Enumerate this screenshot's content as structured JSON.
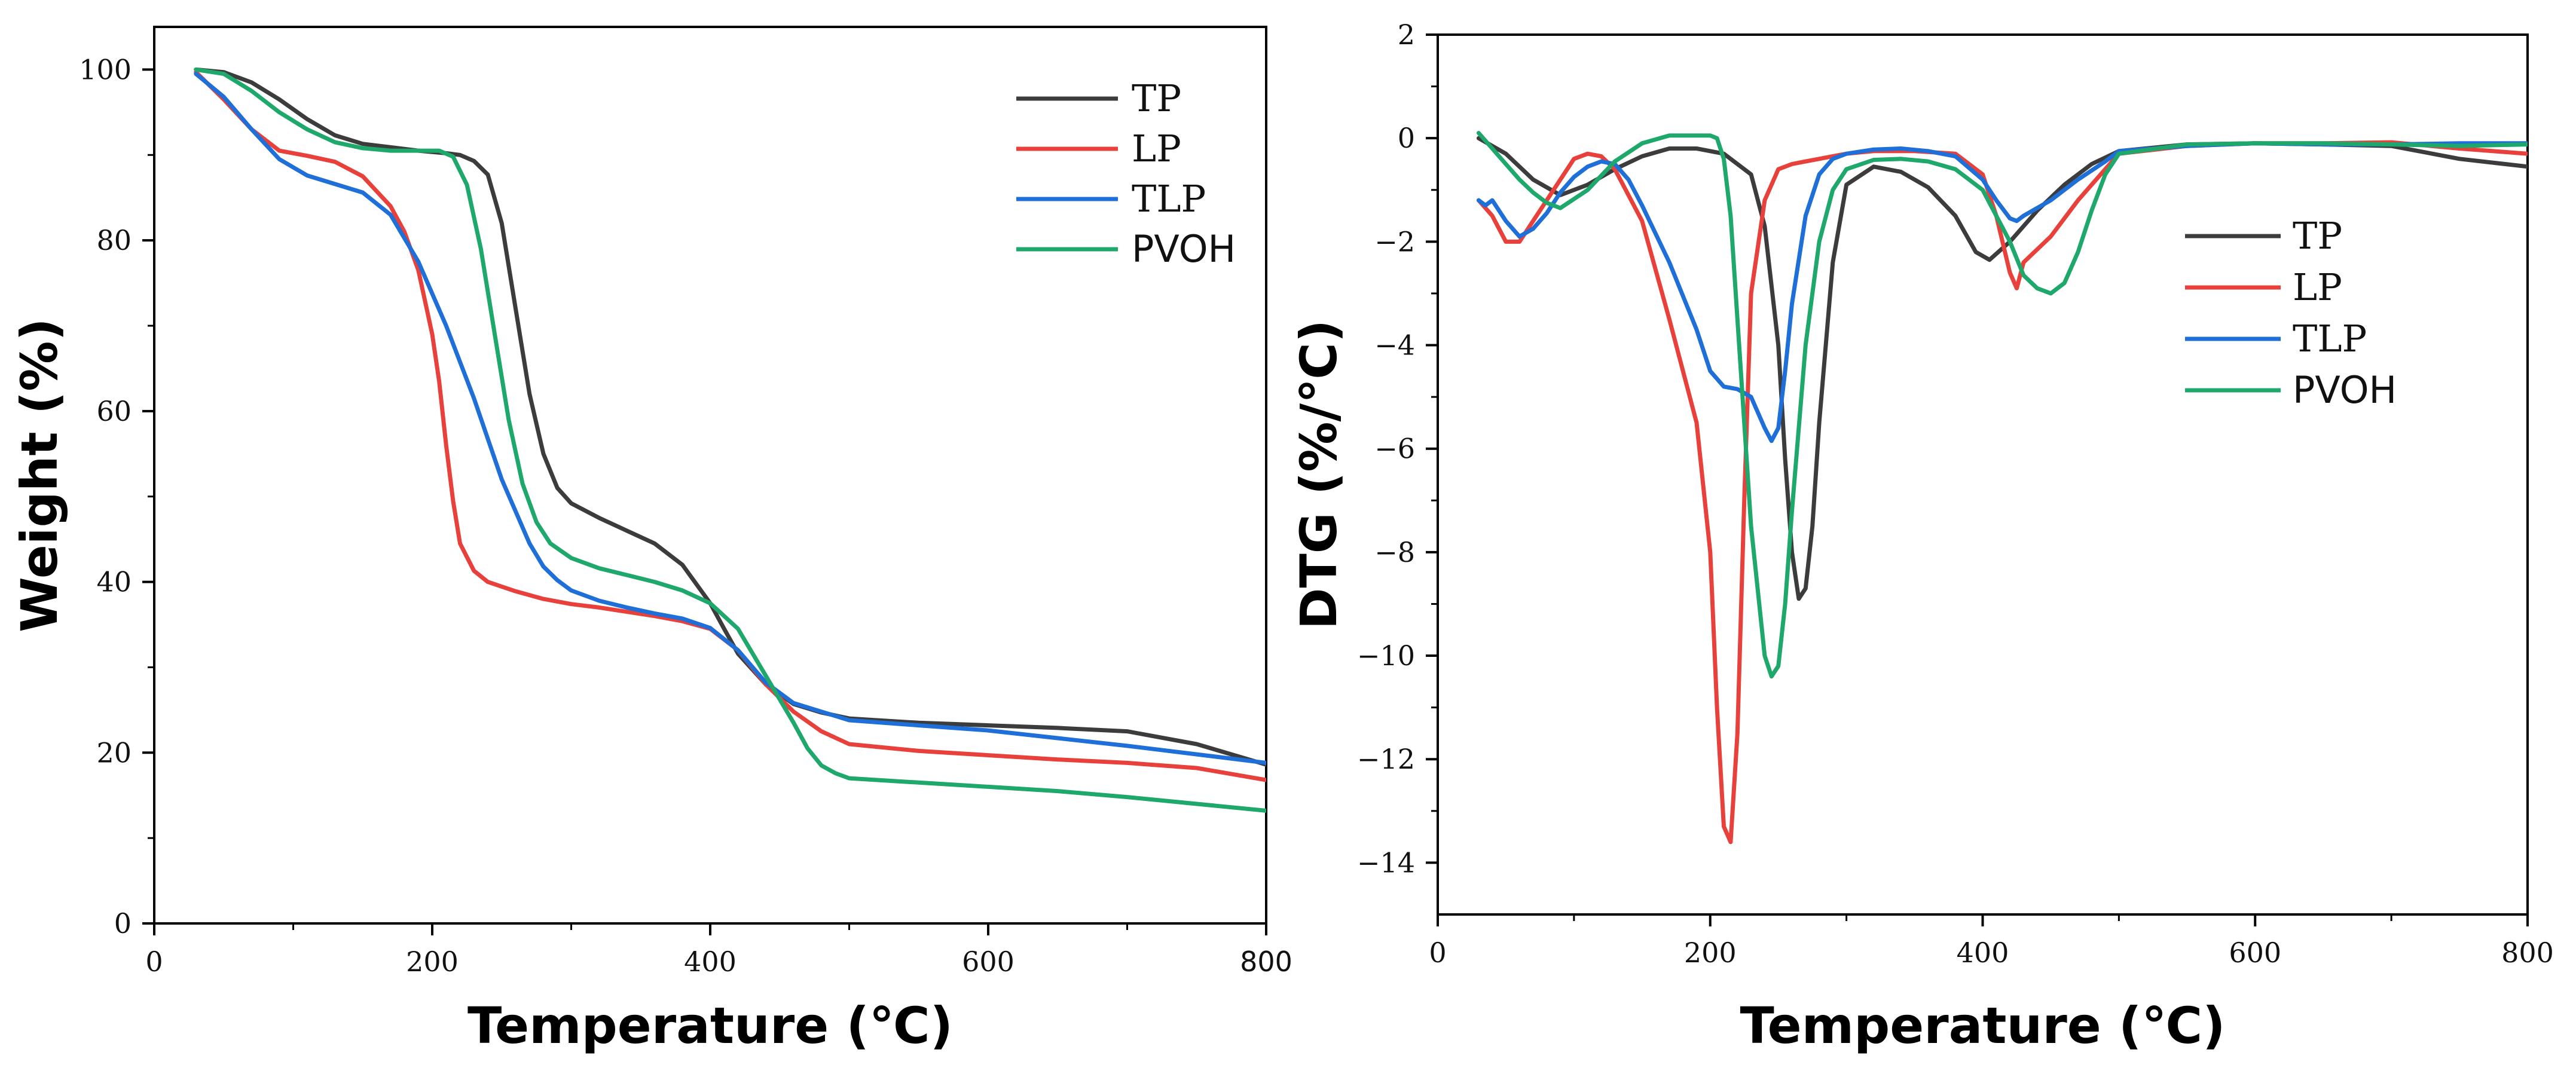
{
  "chart_data": [
    {
      "type": "line",
      "title": "",
      "xlabel": "Temperature (℃)",
      "ylabel": "Weight (%)",
      "xlim": [
        0,
        800
      ],
      "ylim": [
        0,
        105
      ],
      "xticks": [
        0,
        200,
        400,
        600,
        800
      ],
      "xtick_labels": [
        "0",
        "200",
        "400",
        "600",
        "800"
      ],
      "yticks": [
        0,
        20,
        40,
        60,
        80,
        100
      ],
      "ytick_labels": [
        "0",
        "20",
        "40",
        "60",
        "80",
        "100"
      ],
      "grid": false,
      "legend_position": "top-right",
      "series": [
        {
          "name": "TP",
          "color": "#3c3c3c",
          "x": [
            30,
            50,
            70,
            90,
            110,
            130,
            150,
            170,
            190,
            210,
            220,
            230,
            240,
            250,
            260,
            270,
            280,
            290,
            300,
            320,
            340,
            360,
            380,
            400,
            410,
            420,
            440,
            460,
            480,
            500,
            550,
            600,
            650,
            700,
            750,
            800
          ],
          "y": [
            100,
            99.7,
            98.5,
            96.5,
            94.2,
            92.3,
            91.3,
            90.9,
            90.5,
            90.2,
            90.0,
            89.3,
            87.7,
            82.0,
            72.0,
            62.0,
            55.0,
            51.0,
            49.2,
            47.5,
            46.0,
            44.5,
            42.0,
            37.5,
            34.5,
            31.6,
            28.0,
            25.7,
            24.7,
            24.0,
            23.5,
            23.2,
            22.9,
            22.5,
            21.0,
            18.6
          ]
        },
        {
          "name": "LP",
          "color": "#e8403a",
          "x": [
            30,
            50,
            70,
            90,
            110,
            130,
            150,
            170,
            180,
            190,
            200,
            205,
            210,
            215,
            220,
            230,
            240,
            260,
            280,
            300,
            320,
            340,
            360,
            380,
            400,
            420,
            440,
            460,
            480,
            500,
            550,
            600,
            650,
            700,
            750,
            800
          ],
          "y": [
            99.7,
            96.5,
            93.0,
            90.5,
            89.9,
            89.2,
            87.5,
            84.0,
            81.0,
            76.5,
            69.0,
            63.5,
            56.0,
            49.5,
            44.5,
            41.3,
            40.0,
            38.9,
            38.0,
            37.4,
            37.0,
            36.5,
            36.0,
            35.4,
            34.5,
            32.0,
            28.0,
            24.8,
            22.5,
            21.0,
            20.2,
            19.7,
            19.2,
            18.8,
            18.2,
            16.8
          ]
        },
        {
          "name": "TLP",
          "color": "#1e6fd8",
          "x": [
            30,
            50,
            70,
            90,
            110,
            130,
            150,
            170,
            190,
            210,
            230,
            250,
            270,
            280,
            290,
            300,
            320,
            340,
            360,
            380,
            400,
            420,
            440,
            460,
            480,
            500,
            550,
            600,
            650,
            700,
            750,
            800
          ],
          "y": [
            99.5,
            96.8,
            93.0,
            89.5,
            87.6,
            86.6,
            85.6,
            83.0,
            77.5,
            70.0,
            61.5,
            52.0,
            44.5,
            41.8,
            40.2,
            39.0,
            37.8,
            37.0,
            36.3,
            35.7,
            34.6,
            32.0,
            28.2,
            25.8,
            24.8,
            23.8,
            23.2,
            22.6,
            21.7,
            20.8,
            19.8,
            18.8
          ]
        },
        {
          "name": "PVOH",
          "color": "#1ea86b",
          "x": [
            30,
            50,
            70,
            90,
            110,
            130,
            150,
            170,
            190,
            205,
            215,
            225,
            235,
            245,
            255,
            265,
            275,
            285,
            300,
            320,
            340,
            360,
            380,
            400,
            420,
            440,
            460,
            470,
            480,
            490,
            500,
            550,
            600,
            650,
            700,
            750,
            800
          ],
          "y": [
            100,
            99.5,
            97.5,
            95.0,
            93.0,
            91.5,
            90.8,
            90.5,
            90.5,
            90.5,
            89.8,
            86.5,
            79.0,
            69.0,
            59.0,
            51.5,
            47.0,
            44.5,
            42.8,
            41.6,
            40.8,
            40.0,
            39.0,
            37.5,
            34.5,
            29.0,
            23.5,
            20.5,
            18.5,
            17.6,
            17.0,
            16.5,
            16.0,
            15.5,
            14.8,
            14.0,
            13.2
          ]
        }
      ]
    },
    {
      "type": "line",
      "title": "",
      "xlabel": "Temperature (℃)",
      "ylabel": "DTG (%/℃)",
      "xlim": [
        0,
        800
      ],
      "ylim": [
        -15,
        2
      ],
      "xticks": [
        0,
        200,
        400,
        600,
        800
      ],
      "xtick_labels": [
        "0",
        "200",
        "400",
        "600",
        "800"
      ],
      "yticks": [
        -14,
        -12,
        -10,
        -8,
        -6,
        -4,
        -2,
        0,
        2
      ],
      "ytick_labels": [
        "−14",
        "−12",
        "−10",
        "−8",
        "−6",
        "−4",
        "−2",
        "0",
        "2"
      ],
      "grid": false,
      "legend_position": "center-right",
      "series": [
        {
          "name": "TP",
          "color": "#3c3c3c",
          "x": [
            30,
            50,
            70,
            90,
            110,
            130,
            150,
            170,
            190,
            210,
            230,
            240,
            250,
            255,
            260,
            265,
            270,
            275,
            280,
            290,
            300,
            320,
            340,
            360,
            380,
            395,
            405,
            420,
            440,
            460,
            480,
            500,
            550,
            600,
            650,
            700,
            750,
            800
          ],
          "y": [
            0,
            -0.3,
            -0.8,
            -1.1,
            -0.9,
            -0.6,
            -0.35,
            -0.2,
            -0.2,
            -0.3,
            -0.7,
            -1.7,
            -4.0,
            -6.2,
            -8.0,
            -8.9,
            -8.7,
            -7.5,
            -5.5,
            -2.4,
            -0.9,
            -0.55,
            -0.65,
            -0.95,
            -1.5,
            -2.2,
            -2.35,
            -2.0,
            -1.4,
            -0.9,
            -0.5,
            -0.25,
            -0.12,
            -0.1,
            -0.12,
            -0.15,
            -0.4,
            -0.55
          ]
        },
        {
          "name": "LP",
          "color": "#e8403a",
          "x": [
            30,
            40,
            50,
            60,
            70,
            80,
            90,
            100,
            110,
            120,
            130,
            150,
            170,
            190,
            200,
            205,
            210,
            215,
            220,
            225,
            230,
            240,
            250,
            260,
            270,
            300,
            320,
            350,
            380,
            400,
            410,
            420,
            425,
            430,
            450,
            470,
            490,
            500,
            550,
            600,
            650,
            700,
            750,
            800
          ],
          "y": [
            -1.2,
            -1.5,
            -2.0,
            -2.0,
            -1.6,
            -1.2,
            -0.8,
            -0.4,
            -0.3,
            -0.35,
            -0.6,
            -1.6,
            -3.5,
            -5.5,
            -8.0,
            -11.0,
            -13.3,
            -13.6,
            -11.5,
            -7.0,
            -3.0,
            -1.2,
            -0.6,
            -0.5,
            -0.45,
            -0.3,
            -0.25,
            -0.25,
            -0.3,
            -0.7,
            -1.5,
            -2.6,
            -2.9,
            -2.4,
            -1.9,
            -1.2,
            -0.6,
            -0.3,
            -0.15,
            -0.1,
            -0.1,
            -0.08,
            -0.2,
            -0.3
          ]
        },
        {
          "name": "TLP",
          "color": "#1e6fd8",
          "x": [
            30,
            35,
            40,
            50,
            60,
            70,
            80,
            90,
            100,
            110,
            120,
            130,
            140,
            150,
            170,
            190,
            200,
            210,
            220,
            230,
            240,
            245,
            250,
            255,
            260,
            270,
            280,
            290,
            300,
            320,
            340,
            360,
            380,
            400,
            410,
            420,
            425,
            430,
            450,
            470,
            490,
            500,
            550,
            600,
            650,
            700,
            750,
            800
          ],
          "y": [
            -1.2,
            -1.3,
            -1.2,
            -1.6,
            -1.9,
            -1.75,
            -1.45,
            -1.05,
            -0.75,
            -0.55,
            -0.45,
            -0.5,
            -0.8,
            -1.3,
            -2.4,
            -3.7,
            -4.5,
            -4.8,
            -4.85,
            -5.0,
            -5.6,
            -5.85,
            -5.6,
            -4.5,
            -3.2,
            -1.5,
            -0.7,
            -0.4,
            -0.3,
            -0.22,
            -0.2,
            -0.25,
            -0.35,
            -0.8,
            -1.2,
            -1.55,
            -1.6,
            -1.5,
            -1.2,
            -0.8,
            -0.45,
            -0.25,
            -0.15,
            -0.1,
            -0.12,
            -0.12,
            -0.1,
            -0.1
          ]
        },
        {
          "name": "PVOH",
          "color": "#1ea86b",
          "x": [
            30,
            40,
            50,
            60,
            70,
            80,
            90,
            110,
            130,
            150,
            170,
            190,
            200,
            205,
            210,
            215,
            220,
            230,
            240,
            245,
            250,
            255,
            260,
            270,
            280,
            290,
            300,
            320,
            340,
            360,
            380,
            400,
            420,
            430,
            440,
            450,
            460,
            470,
            480,
            490,
            500,
            550,
            600,
            650,
            700,
            750,
            800
          ],
          "y": [
            0.1,
            -0.2,
            -0.5,
            -0.8,
            -1.05,
            -1.25,
            -1.35,
            -1.0,
            -0.45,
            -0.1,
            0.05,
            0.05,
            0.05,
            0.0,
            -0.4,
            -1.5,
            -3.5,
            -7.5,
            -10.0,
            -10.4,
            -10.2,
            -9.0,
            -7.2,
            -4.0,
            -2.0,
            -1.0,
            -0.6,
            -0.42,
            -0.4,
            -0.45,
            -0.6,
            -1.0,
            -2.0,
            -2.65,
            -2.9,
            -3.0,
            -2.8,
            -2.2,
            -1.4,
            -0.7,
            -0.3,
            -0.12,
            -0.1,
            -0.1,
            -0.12,
            -0.15,
            -0.12
          ]
        }
      ]
    }
  ]
}
